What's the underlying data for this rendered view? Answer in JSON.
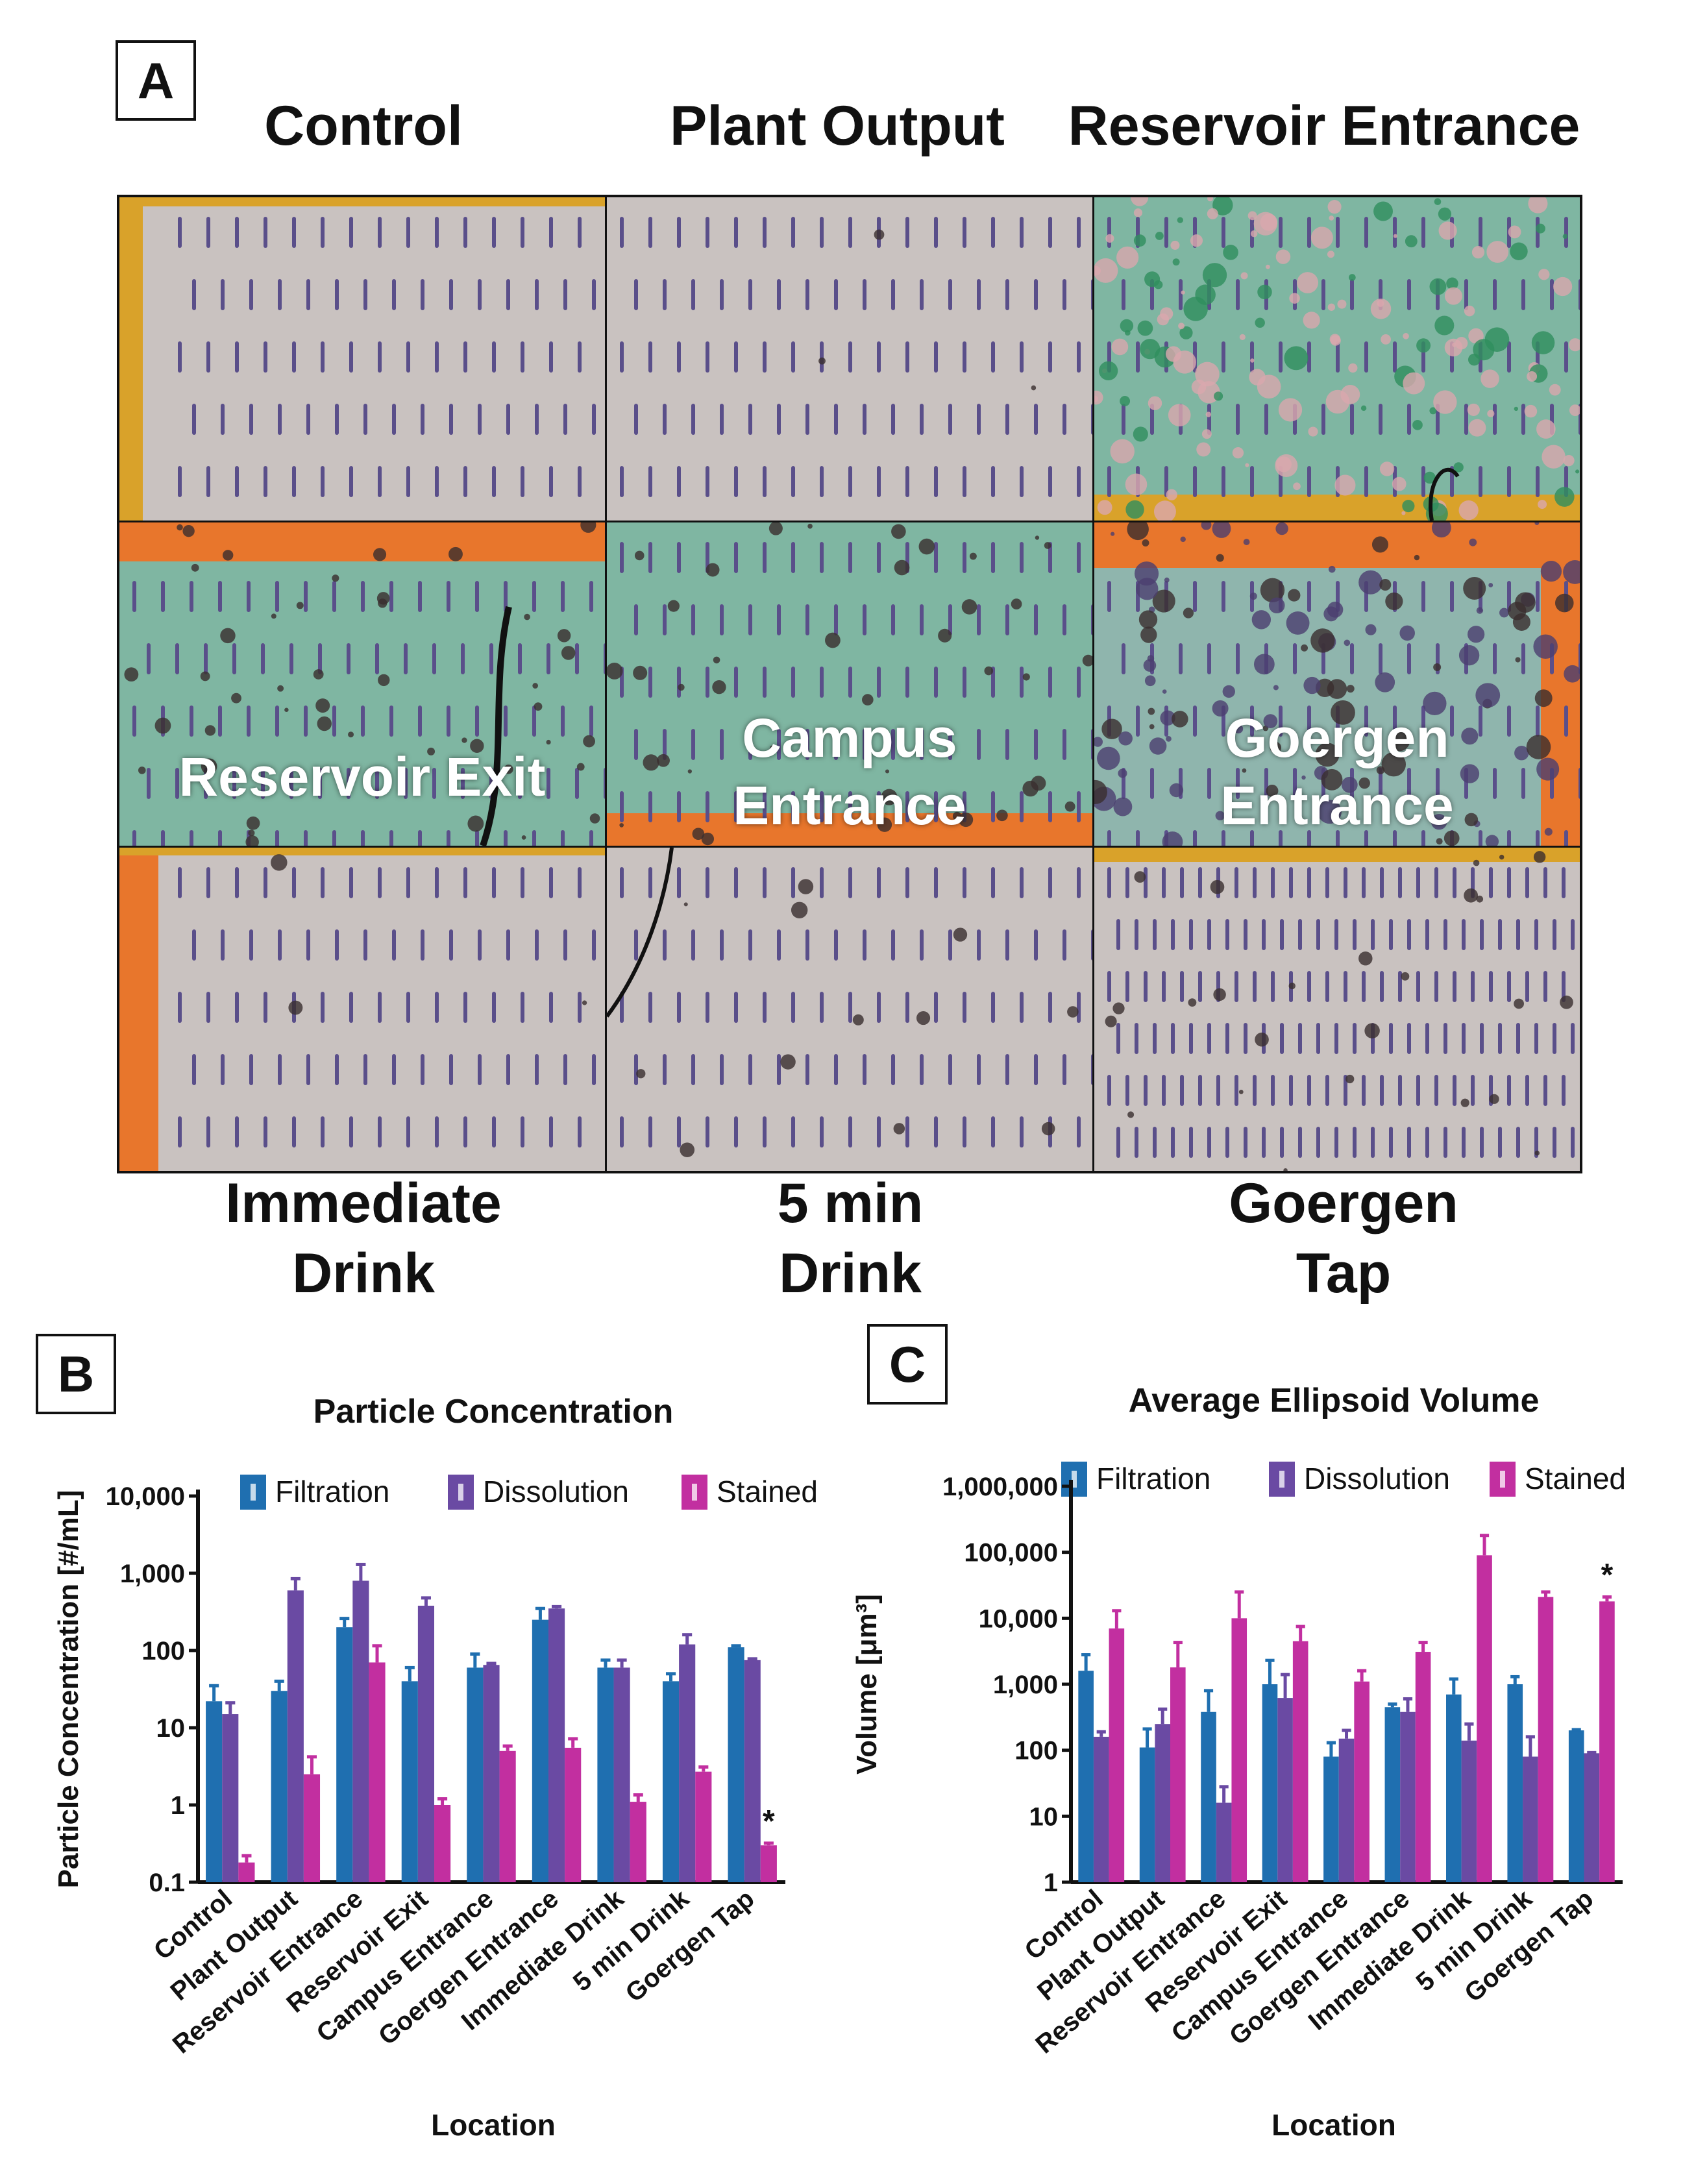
{
  "panels": {
    "a_letter": "A",
    "b_letter": "B",
    "c_letter": "C"
  },
  "panel_a": {
    "top_titles": [
      "Control",
      "Plant Output",
      "Reservoir Entrance"
    ],
    "inline_labels": {
      "reservoir_exit": "Reservoir Exit",
      "campus_entrance": [
        "Campus",
        "Entrance"
      ],
      "goergen_entrance": [
        "Goergen",
        "Entrance"
      ]
    },
    "bottom_titles": [
      [
        "Immediate",
        "Drink"
      ],
      [
        "5 min",
        "Drink"
      ],
      [
        "Goergen",
        "Tap"
      ]
    ],
    "colors": {
      "membrane": "#c9c2c0",
      "membrane_green": "#7fb6a2",
      "slot": "#5a4f8a",
      "frame_yellow": "#d9a22a",
      "frame_orange": "#e8762c",
      "debris": "#3a2e2e"
    }
  },
  "chart_data": [
    {
      "type": "bar",
      "title": "Particle Concentration",
      "xlabel": "Location",
      "ylabel": "Particle Concentration [#/mL]",
      "yscale": "log",
      "ylim": [
        0.1,
        10000
      ],
      "yticks": [
        "0.1",
        "1",
        "10",
        "100",
        "1,000",
        "10,000"
      ],
      "categories": [
        "Control",
        "Plant Output",
        "Reservoir Entrance",
        "Reservoir Exit",
        "Campus Entrance",
        "Goergen Entrance",
        "Immediate Drink",
        "5 min Drink",
        "Goergen Tap"
      ],
      "legend_position": "top",
      "series": [
        {
          "name": "Filtration",
          "color": "#1f6fb0",
          "values": [
            22,
            30,
            200,
            40,
            60,
            250,
            60,
            40,
            110
          ],
          "err_upper": [
            35,
            40,
            260,
            60,
            90,
            350,
            75,
            50,
            115
          ]
        },
        {
          "name": "Dissolution",
          "color": "#6a4aa3",
          "values": [
            15,
            600,
            800,
            380,
            65,
            350,
            60,
            120,
            75
          ],
          "err_upper": [
            21,
            850,
            1300,
            480,
            68,
            370,
            75,
            160,
            78
          ]
        },
        {
          "name": "Stained",
          "color": "#c22fa0",
          "values": [
            0.18,
            2.5,
            70,
            1.0,
            5,
            5.5,
            1.1,
            2.7,
            0.3
          ],
          "err_upper": [
            0.22,
            4.2,
            115,
            1.2,
            5.8,
            7.2,
            1.35,
            3.1,
            0.32
          ]
        }
      ],
      "annotations": [
        {
          "category": "Goergen Tap",
          "text": "*"
        }
      ]
    },
    {
      "type": "bar",
      "title": "Average Ellipsoid Volume",
      "xlabel": "Location",
      "ylabel": "Volume [μm³]",
      "yscale": "log",
      "ylim": [
        1,
        1000000
      ],
      "yticks": [
        "1",
        "10",
        "100",
        "1,000",
        "10,000",
        "100,000",
        "1,000,000"
      ],
      "categories": [
        "Control",
        "Plant Output",
        "Reservoir Entrance",
        "Reservoir Exit",
        "Campus Entrance",
        "Goergen Entrance",
        "Immediate Drink",
        "5 min Drink",
        "Goergen Tap"
      ],
      "legend_position": "top",
      "series": [
        {
          "name": "Filtration",
          "color": "#1f6fb0",
          "values": [
            1600,
            110,
            380,
            1000,
            80,
            450,
            700,
            1000,
            200
          ],
          "err_upper": [
            2800,
            210,
            800,
            2300,
            130,
            500,
            1200,
            1300,
            205
          ]
        },
        {
          "name": "Dissolution",
          "color": "#6a4aa3",
          "values": [
            160,
            250,
            16,
            620,
            150,
            380,
            140,
            80,
            90
          ],
          "err_upper": [
            190,
            420,
            28,
            1400,
            200,
            600,
            250,
            160,
            92
          ]
        },
        {
          "name": "Stained",
          "color": "#c22fa0",
          "values": [
            7000,
            1800,
            10000,
            4500,
            1100,
            3100,
            90000,
            21000,
            18000
          ],
          "err_upper": [
            13000,
            4300,
            25000,
            7500,
            1600,
            4300,
            180000,
            25000,
            21000
          ]
        }
      ],
      "annotations": [
        {
          "category": "Goergen Tap",
          "text": "*"
        }
      ]
    }
  ]
}
